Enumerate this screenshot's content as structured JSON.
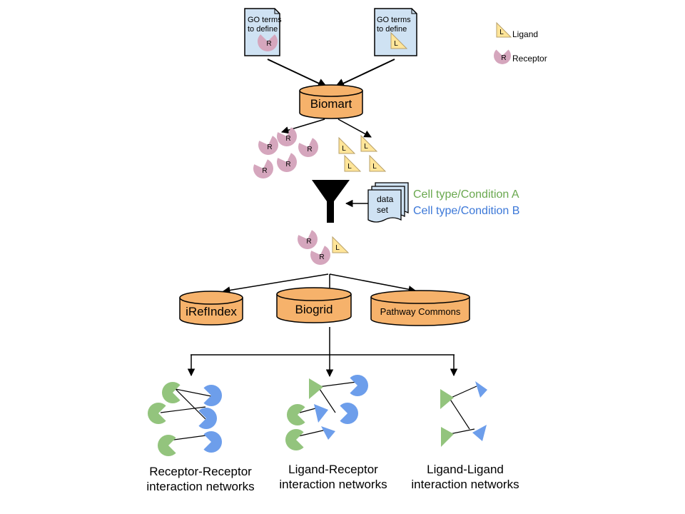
{
  "docs": {
    "left_line1": "GO terms",
    "left_line2": "to define",
    "right_line1": "GO terms",
    "right_line2": "to define"
  },
  "legend": {
    "ligand": "Ligand",
    "receptor": "Receptor"
  },
  "glyphs": {
    "receptor": "R",
    "ligand": "L"
  },
  "databases": {
    "biomart": "Biomart",
    "irefindex": "iRefIndex",
    "biogrid": "Biogrid",
    "pathway_commons": "Pathway Commons"
  },
  "dataset": {
    "line1": "data",
    "line2": "set"
  },
  "conditions": {
    "a": "Cell type/Condition A",
    "b": "Cell type/Condition B"
  },
  "networks": {
    "rr_line1": "Receptor-Receptor",
    "rr_line2": "interaction networks",
    "lr_line1": "Ligand-Receptor",
    "lr_line2": "interaction networks",
    "ll_line1": "Ligand-Ligand",
    "ll_line2": "interaction networks"
  },
  "colors": {
    "doc_fill": "#cfe2f3",
    "db_fill": "#f6b26b",
    "receptor_pink": "#d5a6bd",
    "ligand_yellow": "#ffe599",
    "green": "#93c47d",
    "blue": "#6d9eeb",
    "condition_a": "#6aa84f",
    "condition_b": "#3c78d8"
  }
}
